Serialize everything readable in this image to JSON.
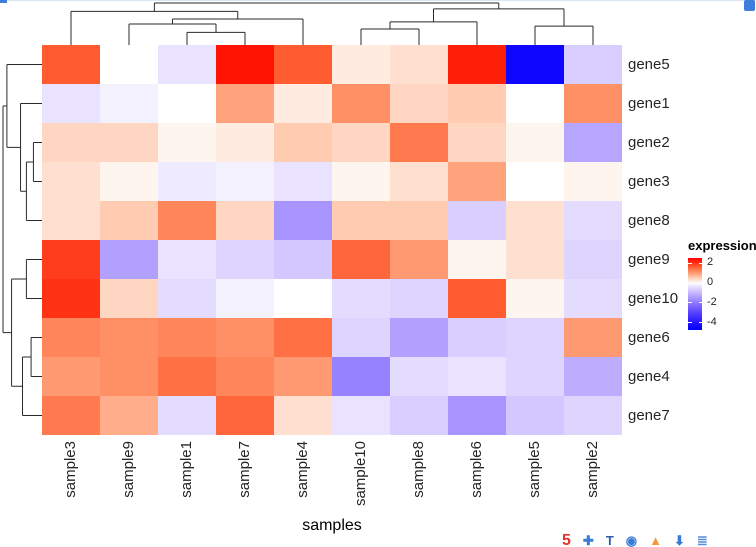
{
  "chart_data": {
    "type": "heatmap",
    "title": "",
    "xlabel": "samples",
    "ylabel": "",
    "legend_position": "right",
    "grid": false,
    "columns": [
      "sample3",
      "sample9",
      "sample1",
      "sample7",
      "sample4",
      "sample10",
      "sample8",
      "sample6",
      "sample5",
      "sample2"
    ],
    "rows": [
      "gene5",
      "gene1",
      "gene2",
      "gene3",
      "gene8",
      "gene9",
      "gene10",
      "gene6",
      "gene4",
      "gene7"
    ],
    "values": [
      [
        1.6,
        0.0,
        -0.4,
        2.3,
        1.6,
        0.2,
        0.3,
        2.2,
        -4.5,
        -0.7
      ],
      [
        -0.4,
        -0.2,
        0.0,
        0.9,
        0.2,
        1.1,
        0.4,
        0.5,
        0.0,
        1.1
      ],
      [
        0.4,
        0.4,
        0.1,
        0.2,
        0.5,
        0.4,
        1.3,
        0.4,
        0.1,
        -1.3
      ],
      [
        0.3,
        0.1,
        -0.3,
        -0.2,
        -0.4,
        0.1,
        0.3,
        0.9,
        0.0,
        0.1
      ],
      [
        0.3,
        0.5,
        1.2,
        0.4,
        -1.6,
        0.5,
        0.5,
        -0.7,
        0.3,
        -0.5
      ],
      [
        1.9,
        -1.4,
        -0.4,
        -0.6,
        -0.8,
        1.5,
        1.0,
        0.1,
        0.3,
        -0.6
      ],
      [
        2.0,
        0.4,
        -0.5,
        -0.2,
        0.0,
        -0.5,
        -0.6,
        1.6,
        0.1,
        -0.5
      ],
      [
        1.2,
        1.1,
        1.2,
        1.1,
        1.4,
        -0.6,
        -1.4,
        -0.7,
        -0.6,
        1.0
      ],
      [
        1.0,
        1.1,
        1.4,
        1.2,
        1.0,
        -1.9,
        -0.5,
        -0.4,
        -0.6,
        -1.2
      ],
      [
        1.3,
        0.8,
        -0.5,
        1.5,
        0.3,
        -0.4,
        -0.7,
        -1.6,
        -0.8,
        -0.6
      ]
    ],
    "color_scale": {
      "title": "expression",
      "ticks": [
        2,
        0,
        -2,
        -4
      ],
      "domain_max": 2.5,
      "domain_min": -4.8,
      "high_color": "#ff0000",
      "mid_color": "#ffffff",
      "low_color": "#0000ff"
    },
    "col_dendrogram": {
      "h": 1.0,
      "children": [
        {
          "h": 0.8,
          "children": [
            {
              "leaf": 0
            },
            {
              "h": 0.62,
              "children": [
                {
                  "h": 0.5,
                  "children": [
                    {
                      "leaf": 1
                    },
                    {
                      "h": 0.3,
                      "children": [
                        {
                          "leaf": 2
                        },
                        {
                          "leaf": 3
                        }
                      ]
                    }
                  ]
                },
                {
                  "leaf": 4
                }
              ]
            }
          ]
        },
        {
          "h": 0.86,
          "children": [
            {
              "h": 0.55,
              "children": [
                {
                  "h": 0.38,
                  "children": [
                    {
                      "leaf": 5
                    },
                    {
                      "leaf": 6
                    }
                  ]
                },
                {
                  "leaf": 7
                }
              ]
            },
            {
              "h": 0.45,
              "children": [
                {
                  "leaf": 8
                },
                {
                  "leaf": 9
                }
              ]
            }
          ]
        }
      ]
    },
    "row_dendrogram": {
      "h": 1.0,
      "children": [
        {
          "h": 0.9,
          "children": [
            {
              "leaf": 0
            },
            {
              "h": 0.55,
              "children": [
                {
                  "leaf": 1
                },
                {
                  "h": 0.4,
                  "children": [
                    {
                      "h": 0.22,
                      "children": [
                        {
                          "leaf": 2
                        },
                        {
                          "leaf": 3
                        }
                      ]
                    },
                    {
                      "leaf": 4
                    }
                  ]
                }
              ]
            }
          ]
        },
        {
          "h": 0.78,
          "children": [
            {
              "h": 0.4,
              "children": [
                {
                  "leaf": 5
                },
                {
                  "leaf": 6
                }
              ]
            },
            {
              "h": 0.5,
              "children": [
                {
                  "h": 0.28,
                  "children": [
                    {
                      "leaf": 7
                    },
                    {
                      "leaf": 8
                    }
                  ]
                },
                {
                  "leaf": 9
                }
              ]
            }
          ]
        }
      ]
    }
  },
  "chrome": {
    "top_right_icon_color": "#3d7edb",
    "bookmark_icons": [
      {
        "name": "red-logo-icon",
        "glyph": "5",
        "color": "#e0332c",
        "size": 16
      },
      {
        "name": "blue-plus-icon",
        "glyph": "✚",
        "color": "#3a7bd5"
      },
      {
        "name": "blue-t-icon",
        "glyph": "T",
        "color": "#2b5fae"
      },
      {
        "name": "globe-icon",
        "glyph": "◉",
        "color": "#3a7bd5"
      },
      {
        "name": "orange-triangle-icon",
        "glyph": "▲",
        "color": "#f09a3c"
      },
      {
        "name": "download-icon",
        "glyph": "⬇",
        "color": "#3a7bd5"
      },
      {
        "name": "menu-icon",
        "glyph": "≣",
        "color": "#5b8dd9"
      }
    ]
  }
}
